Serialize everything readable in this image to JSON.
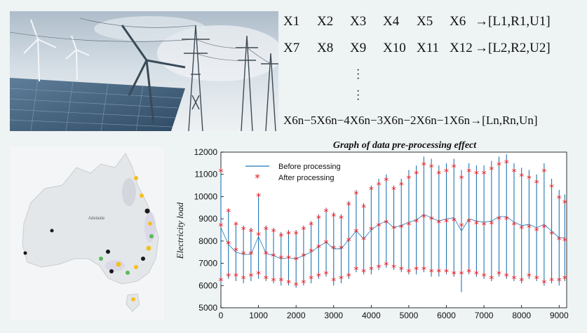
{
  "equations": {
    "row1": [
      "X1",
      "X2",
      "X3",
      "X4",
      "X5",
      "X6",
      "→[L1,R1,U1]"
    ],
    "row2": [
      "X7",
      "X8",
      "X9",
      "X10",
      "X11",
      "X12",
      "→[L2,R2,U2]"
    ],
    "row3": [
      "X6n−5",
      "X6n−4",
      "X6n−3",
      "X6n−2",
      "X6n−1",
      "X6n",
      "→[Ln,Rn,Un]"
    ]
  },
  "map": {
    "city_label": "Adelaide"
  },
  "colors": {
    "before": "#1f77b4",
    "after": "#e8141c",
    "sky": "#bccbd6",
    "panel": "#46627d"
  },
  "chart_data": {
    "type": "line",
    "title": "Graph of data pre-processing effect",
    "xlabel": "",
    "ylabel": "Electricity load",
    "xlim": [
      0,
      9200
    ],
    "ylim": [
      5000,
      12000
    ],
    "xticks": [
      0,
      1000,
      2000,
      3000,
      4000,
      5000,
      6000,
      7000,
      8000,
      9000
    ],
    "yticks": [
      5000,
      6000,
      7000,
      8000,
      9000,
      10000,
      11000,
      12000
    ],
    "legend_position": "top-left",
    "series": [
      {
        "name": "Before processing",
        "style": "line",
        "x": [
          0,
          200,
          400,
          600,
          800,
          1000,
          1200,
          1400,
          1600,
          1800,
          2000,
          2200,
          2400,
          2600,
          2800,
          3000,
          3200,
          3400,
          3600,
          3800,
          4000,
          4200,
          4400,
          4600,
          4800,
          5000,
          5200,
          5400,
          5600,
          5800,
          6000,
          6200,
          6400,
          6600,
          6800,
          7000,
          7200,
          7400,
          7600,
          7800,
          8000,
          8200,
          8400,
          8600,
          8800,
          9000,
          9150
        ],
        "low": [
          6000,
          6300,
          6200,
          6100,
          6200,
          6300,
          6200,
          6100,
          6000,
          6000,
          5900,
          6000,
          6100,
          6300,
          6400,
          6000,
          6100,
          6300,
          6600,
          6500,
          6500,
          6700,
          6800,
          6700,
          6600,
          6500,
          6500,
          6600,
          6400,
          6400,
          6500,
          6400,
          5700,
          6500,
          6400,
          6300,
          6200,
          6400,
          6300,
          6200,
          6100,
          6300,
          6200,
          6000,
          6100,
          6000,
          6200
        ],
        "high": [
          11200,
          9400,
          8800,
          8700,
          8600,
          10100,
          8700,
          8600,
          8400,
          8500,
          8500,
          8700,
          8900,
          9200,
          9500,
          9300,
          9200,
          9800,
          10300,
          9700,
          10500,
          10800,
          11000,
          10500,
          10800,
          11200,
          11400,
          11800,
          11700,
          11400,
          11500,
          11700,
          11200,
          11500,
          11400,
          11400,
          11600,
          11800,
          11900,
          11500,
          11300,
          11200,
          11000,
          11500,
          10800,
          10300,
          10100
        ]
      },
      {
        "name": "After processing",
        "style": "star",
        "x": [
          0,
          200,
          400,
          600,
          800,
          1000,
          1200,
          1400,
          1600,
          1800,
          2000,
          2200,
          2400,
          2600,
          2800,
          3000,
          3200,
          3400,
          3600,
          3800,
          4000,
          4200,
          4400,
          4600,
          4800,
          5000,
          5200,
          5400,
          5600,
          5800,
          6000,
          6200,
          6400,
          6600,
          6800,
          7000,
          7200,
          7400,
          7600,
          7800,
          8000,
          8200,
          8400,
          8600,
          8800,
          9000,
          9150
        ],
        "low": [
          6200,
          6400,
          6400,
          6300,
          6400,
          6500,
          6300,
          6200,
          6200,
          6100,
          6000,
          6100,
          6300,
          6400,
          6500,
          6200,
          6300,
          6400,
          6700,
          6600,
          6700,
          6800,
          6900,
          6800,
          6700,
          6600,
          6700,
          6700,
          6600,
          6600,
          6600,
          6500,
          6500,
          6600,
          6500,
          6400,
          6300,
          6500,
          6400,
          6300,
          6200,
          6400,
          6300,
          6100,
          6200,
          6200,
          6300
        ],
        "high": [
          11100,
          9300,
          8700,
          8500,
          8400,
          10000,
          8500,
          8400,
          8200,
          8300,
          8300,
          8500,
          8700,
          9000,
          9300,
          9100,
          9000,
          9600,
          10100,
          9500,
          10300,
          10500,
          10700,
          10300,
          10500,
          10800,
          11000,
          11400,
          11300,
          11000,
          11100,
          11300,
          10800,
          11100,
          11000,
          11000,
          11200,
          11400,
          11500,
          11100,
          10900,
          10800,
          10600,
          11100,
          10400,
          9900,
          9700
        ]
      }
    ]
  }
}
